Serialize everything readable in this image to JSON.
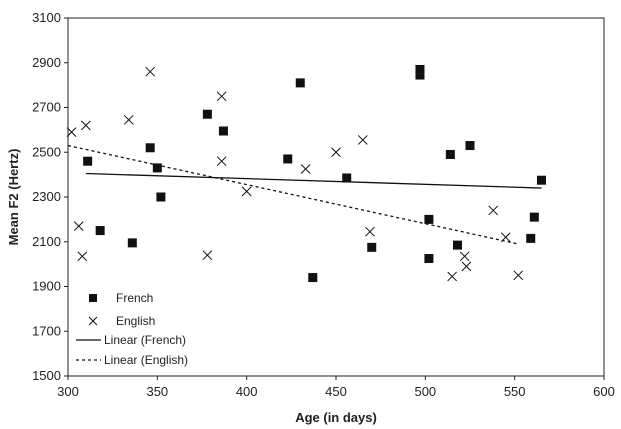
{
  "chart_data": {
    "type": "scatter",
    "title": "",
    "xlabel": "Age (in days)",
    "ylabel": "Mean F2 (Hertz)",
    "xlim": [
      300,
      600
    ],
    "ylim": [
      1500,
      3100
    ],
    "x_ticks": [
      "300",
      "350",
      "400",
      "450",
      "500",
      "550",
      "600"
    ],
    "y_ticks": [
      "1500",
      "1700",
      "1900",
      "2100",
      "2300",
      "2500",
      "2700",
      "2900",
      "3100"
    ],
    "grid": false,
    "legend_position": "bottom-left",
    "series": [
      {
        "name": "French",
        "marker": "square",
        "color": "#111111",
        "points": [
          [
            311,
            2460
          ],
          [
            318,
            2150
          ],
          [
            336,
            2095
          ],
          [
            346,
            2520
          ],
          [
            350,
            2430
          ],
          [
            352,
            2300
          ],
          [
            378,
            2670
          ],
          [
            387,
            2595
          ],
          [
            423,
            2470
          ],
          [
            430,
            2810
          ],
          [
            437,
            1940
          ],
          [
            456,
            2385
          ],
          [
            470,
            2075
          ],
          [
            497,
            2870
          ],
          [
            497,
            2845
          ],
          [
            502,
            2200
          ],
          [
            502,
            2025
          ],
          [
            514,
            2490
          ],
          [
            518,
            2085
          ],
          [
            525,
            2530
          ],
          [
            559,
            2115
          ],
          [
            561,
            2210
          ],
          [
            565,
            2375
          ]
        ]
      },
      {
        "name": "English",
        "marker": "x",
        "color": "#111111",
        "points": [
          [
            302,
            2590
          ],
          [
            306,
            2170
          ],
          [
            308,
            2035
          ],
          [
            310,
            2620
          ],
          [
            334,
            2645
          ],
          [
            346,
            2860
          ],
          [
            378,
            2040
          ],
          [
            386,
            2750
          ],
          [
            386,
            2460
          ],
          [
            400,
            2325
          ],
          [
            433,
            2425
          ],
          [
            450,
            2500
          ],
          [
            465,
            2555
          ],
          [
            469,
            2145
          ],
          [
            515,
            1945
          ],
          [
            522,
            2035
          ],
          [
            523,
            1990
          ],
          [
            538,
            2240
          ],
          [
            545,
            2120
          ],
          [
            552,
            1950
          ]
        ]
      }
    ],
    "trendlines": [
      {
        "name": "Linear (French)",
        "style": "solid",
        "points": [
          [
            310,
            2405
          ],
          [
            565,
            2340
          ]
        ]
      },
      {
        "name": "Linear (English)",
        "style": "dashed",
        "points": [
          [
            300,
            2530
          ],
          [
            552,
            2090
          ]
        ]
      }
    ]
  }
}
